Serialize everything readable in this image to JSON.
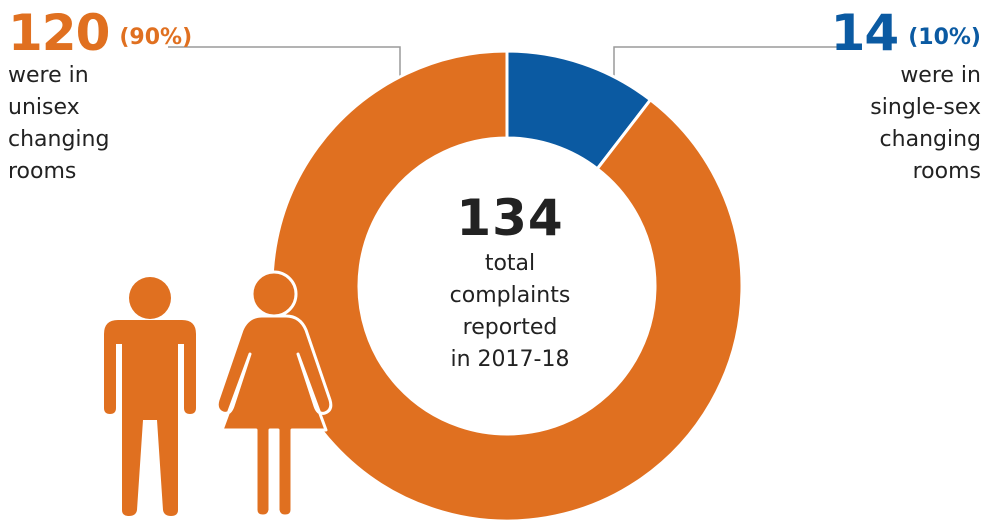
{
  "colors": {
    "unisex": "#E07020",
    "single_sex": "#0B5AA2",
    "leader": "#9A9A9A",
    "figure": "#E07020"
  },
  "icons": [
    "man-figure-icon",
    "woman-figure-icon"
  ],
  "chart_data": {
    "type": "pie",
    "donut": true,
    "title": "",
    "center": {
      "total": "134",
      "caption_lines": [
        "total",
        "complaints",
        "reported",
        "in 2017-18"
      ]
    },
    "slices": [
      {
        "value": 14,
        "count_label": "14",
        "percent_label": "(10%)",
        "description_lines": [
          "were in",
          "single-sex",
          "changing",
          "rooms"
        ],
        "color": "#0B5AA2"
      },
      {
        "value": 120,
        "count_label": "120",
        "percent_label": "(90%)",
        "description_lines": [
          "were in",
          "unisex",
          "changing",
          "rooms"
        ],
        "color": "#E07020"
      }
    ]
  }
}
